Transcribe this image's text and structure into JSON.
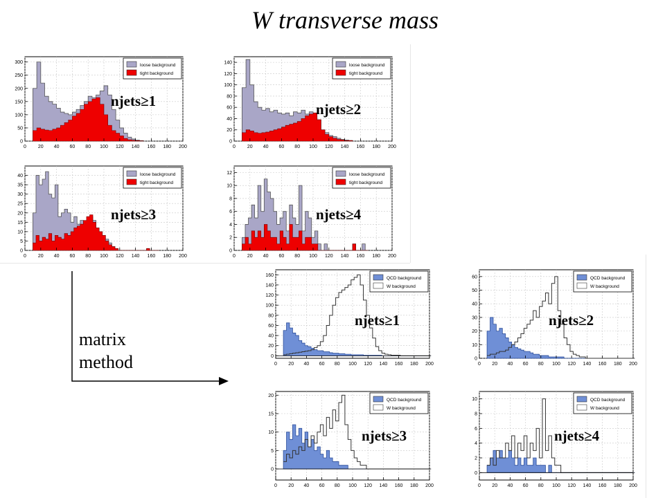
{
  "slide": {
    "title": "W transverse mass",
    "method_line1": "matrix",
    "method_line2": "method"
  },
  "colors": {
    "loose": "#a9a6c7",
    "tight": "#ee0000",
    "qcd": "#6f8fd6",
    "w_line": "#333333"
  },
  "chart_data": [
    {
      "type": "area",
      "group": "before",
      "label": "njets≥1",
      "legend": [
        "loose background",
        "tight background"
      ],
      "xlim": [
        0,
        200
      ],
      "ylim": [
        0,
        320
      ],
      "xticks": [
        0,
        20,
        40,
        60,
        80,
        100,
        120,
        140,
        160,
        180,
        200
      ],
      "yticks": [
        0,
        50,
        100,
        150,
        200,
        250,
        300
      ],
      "x_start": 10,
      "bin_width": 5,
      "series": [
        {
          "name": "loose background",
          "values": [
            200,
            300,
            220,
            170,
            150,
            140,
            125,
            110,
            105,
            100,
            110,
            120,
            135,
            150,
            170,
            165,
            175,
            190,
            210,
            175,
            120,
            80,
            50,
            30,
            15,
            8,
            4,
            2
          ]
        },
        {
          "name": "tight background",
          "values": [
            40,
            50,
            45,
            42,
            40,
            45,
            50,
            60,
            70,
            80,
            95,
            105,
            120,
            140,
            150,
            160,
            165,
            140,
            100,
            60,
            40,
            30,
            20,
            10,
            5,
            3,
            2,
            1
          ]
        }
      ]
    },
    {
      "type": "area",
      "group": "before",
      "label": "njets≥2",
      "legend": [
        "loose background",
        "tight background"
      ],
      "xlim": [
        0,
        200
      ],
      "ylim": [
        0,
        150
      ],
      "xticks": [
        0,
        20,
        40,
        60,
        80,
        100,
        120,
        140,
        160,
        180,
        200
      ],
      "yticks": [
        0,
        20,
        40,
        60,
        80,
        100,
        120,
        140
      ],
      "x_start": 10,
      "bin_width": 5,
      "series": [
        {
          "name": "loose background",
          "values": [
            95,
            145,
            100,
            70,
            60,
            55,
            58,
            52,
            55,
            50,
            48,
            50,
            45,
            52,
            50,
            55,
            48,
            52,
            50,
            38,
            20,
            15,
            10,
            8,
            5,
            3,
            2,
            1
          ]
        },
        {
          "name": "tight background",
          "values": [
            15,
            20,
            18,
            15,
            14,
            15,
            16,
            18,
            20,
            22,
            25,
            28,
            30,
            32,
            35,
            40,
            45,
            48,
            50,
            38,
            20,
            12,
            8,
            5,
            3,
            2,
            1,
            1
          ]
        }
      ]
    },
    {
      "type": "area",
      "group": "before",
      "label": "njets≥3",
      "legend": [
        "loose background",
        "tight background"
      ],
      "xlim": [
        0,
        200
      ],
      "ylim": [
        0,
        45
      ],
      "xticks": [
        0,
        20,
        40,
        60,
        80,
        100,
        120,
        140,
        160,
        180,
        200
      ],
      "yticks": [
        0,
        5,
        10,
        15,
        20,
        25,
        30,
        35,
        40
      ],
      "x_start": 10,
      "bin_width": 4,
      "series": [
        {
          "name": "loose background",
          "values": [
            20,
            40,
            35,
            38,
            42,
            30,
            28,
            35,
            18,
            20,
            22,
            20,
            15,
            18,
            14,
            16,
            12,
            15,
            18,
            16,
            12,
            10,
            8,
            6,
            4,
            2,
            1,
            0,
            0,
            0,
            0,
            0,
            0,
            0,
            0,
            0,
            1,
            0,
            0,
            0
          ]
        },
        {
          "name": "tight background",
          "values": [
            4,
            8,
            5,
            7,
            6,
            9,
            5,
            8,
            7,
            6,
            9,
            8,
            10,
            12,
            13,
            14,
            16,
            18,
            19,
            15,
            12,
            10,
            8,
            5,
            3,
            2,
            1,
            0,
            0,
            0,
            0,
            0,
            0,
            0,
            0,
            0,
            1,
            0,
            0,
            0
          ]
        }
      ]
    },
    {
      "type": "area",
      "group": "before",
      "label": "njets≥4",
      "legend": [
        "loose background",
        "tight background"
      ],
      "xlim": [
        0,
        200
      ],
      "ylim": [
        0,
        13
      ],
      "xticks": [
        0,
        20,
        40,
        60,
        80,
        100,
        120,
        140,
        160,
        180,
        200
      ],
      "yticks": [
        0,
        2,
        4,
        6,
        8,
        10,
        12
      ],
      "x_start": 10,
      "bin_width": 4,
      "series": [
        {
          "name": "loose background",
          "values": [
            2,
            4,
            5,
            7,
            5,
            10,
            6,
            11,
            9,
            8,
            6,
            4,
            5,
            6,
            3,
            7,
            5,
            4,
            10,
            3,
            6,
            5,
            2,
            3,
            1,
            0,
            1,
            0,
            0,
            0,
            0,
            0,
            0,
            0,
            0,
            1,
            0,
            0,
            1,
            0
          ]
        },
        {
          "name": "tight background",
          "values": [
            1,
            2,
            1,
            3,
            2,
            3,
            2,
            4,
            3,
            2,
            2,
            1,
            3,
            2,
            1,
            4,
            2,
            2,
            3,
            1,
            2,
            2,
            1,
            1,
            0,
            0,
            0,
            0,
            0,
            0,
            0,
            0,
            0,
            0,
            0,
            1,
            0,
            0,
            0,
            0
          ]
        }
      ]
    },
    {
      "type": "area",
      "group": "after",
      "label": "njets≥1",
      "legend": [
        "QCD background",
        "W background"
      ],
      "xlim": [
        0,
        200
      ],
      "ylim": [
        -5,
        170
      ],
      "xticks": [
        0,
        20,
        40,
        60,
        80,
        100,
        120,
        140,
        160,
        180,
        200
      ],
      "yticks": [
        0,
        20,
        40,
        60,
        80,
        100,
        120,
        140,
        160
      ],
      "x_start": 10,
      "bin_width": 4,
      "series": [
        {
          "name": "QCD background",
          "values": [
            50,
            65,
            55,
            45,
            40,
            30,
            25,
            20,
            18,
            15,
            12,
            10,
            10,
            8,
            8,
            6,
            5,
            5,
            4,
            4,
            3,
            3,
            2,
            2,
            2,
            2,
            1,
            1,
            1,
            1,
            1,
            1,
            0,
            0,
            0,
            0,
            0,
            0,
            0,
            0,
            0,
            0,
            0,
            0,
            0,
            0,
            0,
            0
          ]
        },
        {
          "name": "W background",
          "values": [
            2,
            3,
            4,
            5,
            6,
            7,
            8,
            9,
            10,
            12,
            16,
            20,
            28,
            40,
            60,
            80,
            100,
            115,
            125,
            130,
            135,
            140,
            150,
            155,
            160,
            140,
            110,
            80,
            55,
            35,
            18,
            10,
            5,
            3,
            2,
            1,
            1,
            1,
            0,
            0,
            0,
            0,
            0,
            0,
            0,
            0,
            0,
            0
          ]
        }
      ]
    },
    {
      "type": "area",
      "group": "after",
      "label": "njets≥2",
      "legend": [
        "QCD background",
        "W background"
      ],
      "xlim": [
        0,
        200
      ],
      "ylim": [
        0,
        65
      ],
      "xticks": [
        0,
        20,
        40,
        60,
        80,
        100,
        120,
        140,
        160,
        180,
        200
      ],
      "yticks": [
        0,
        10,
        20,
        30,
        40,
        50,
        60
      ],
      "x_start": 10,
      "bin_width": 4,
      "series": [
        {
          "name": "QCD background",
          "values": [
            20,
            30,
            25,
            20,
            22,
            18,
            15,
            12,
            10,
            8,
            7,
            6,
            5,
            5,
            4,
            3,
            3,
            2,
            2,
            2,
            1,
            1,
            1,
            1,
            1,
            0,
            0,
            0,
            0,
            0,
            0,
            0,
            0,
            0,
            0,
            0,
            0,
            0,
            0,
            0,
            0,
            0,
            0,
            0,
            0,
            0,
            0,
            0
          ]
        },
        {
          "name": "W background",
          "values": [
            2,
            3,
            3,
            4,
            5,
            5,
            6,
            8,
            10,
            12,
            15,
            18,
            22,
            25,
            28,
            35,
            30,
            38,
            42,
            48,
            40,
            55,
            60,
            35,
            25,
            15,
            10,
            5,
            3,
            2,
            1,
            1,
            0,
            0,
            0,
            0,
            0,
            0,
            0,
            0,
            0,
            0,
            0,
            0,
            0,
            0,
            0,
            0
          ]
        }
      ]
    },
    {
      "type": "area",
      "group": "after",
      "label": "njets≥3",
      "legend": [
        "QCD background",
        "W background"
      ],
      "xlim": [
        0,
        200
      ],
      "ylim": [
        -3,
        21
      ],
      "xticks": [
        0,
        20,
        40,
        60,
        80,
        100,
        120,
        140,
        160,
        180,
        200
      ],
      "yticks": [
        0,
        5,
        10,
        15,
        20
      ],
      "x_start": 10,
      "bin_width": 4,
      "series": [
        {
          "name": "QCD background",
          "values": [
            5,
            10,
            8,
            12,
            9,
            11,
            7,
            10,
            6,
            8,
            5,
            6,
            4,
            3,
            5,
            3,
            2,
            2,
            1,
            1,
            1,
            0,
            0,
            0,
            0,
            0,
            0,
            0,
            0,
            0,
            0,
            0,
            0,
            0,
            0,
            0,
            0,
            0,
            0,
            0,
            0,
            0,
            0,
            0,
            0,
            0,
            0,
            0
          ]
        },
        {
          "name": "W background",
          "values": [
            2,
            4,
            3,
            5,
            4,
            6,
            5,
            8,
            6,
            9,
            7,
            10,
            12,
            9,
            14,
            11,
            16,
            13,
            18,
            20,
            12,
            8,
            5,
            3,
            2,
            1,
            1,
            0,
            0,
            0,
            0,
            0,
            0,
            0,
            0,
            0,
            0,
            0,
            0,
            0,
            0,
            0,
            0,
            0,
            0,
            0,
            0,
            0
          ]
        }
      ]
    },
    {
      "type": "area",
      "group": "after",
      "label": "njets≥4",
      "legend": [
        "QCD background",
        "W background"
      ],
      "xlim": [
        0,
        200
      ],
      "ylim": [
        -1,
        11
      ],
      "xticks": [
        0,
        20,
        40,
        60,
        80,
        100,
        120,
        140,
        160,
        180,
        200
      ],
      "yticks": [
        0,
        2,
        4,
        6,
        8,
        10
      ],
      "x_start": 10,
      "bin_width": 4,
      "series": [
        {
          "name": "QCD background",
          "values": [
            1,
            2,
            3,
            2,
            3,
            2,
            2,
            3,
            2,
            1,
            2,
            1,
            2,
            1,
            1,
            2,
            1,
            1,
            1,
            0,
            1,
            0,
            0,
            0,
            0,
            0,
            0,
            0,
            0,
            0,
            0,
            0,
            0,
            0,
            0,
            0,
            0,
            0,
            0,
            0,
            0,
            0,
            0,
            0,
            0,
            0,
            0,
            0
          ]
        },
        {
          "name": "W background",
          "values": [
            1,
            2,
            1,
            3,
            2,
            2,
            4,
            3,
            5,
            2,
            4,
            3,
            5,
            2,
            4,
            3,
            6,
            2,
            10,
            3,
            5,
            2,
            1,
            1,
            0,
            0,
            0,
            0,
            0,
            0,
            0,
            0,
            0,
            0,
            0,
            0,
            0,
            0,
            0,
            0,
            0,
            0,
            0,
            0,
            0,
            0,
            0,
            0
          ]
        }
      ]
    }
  ]
}
